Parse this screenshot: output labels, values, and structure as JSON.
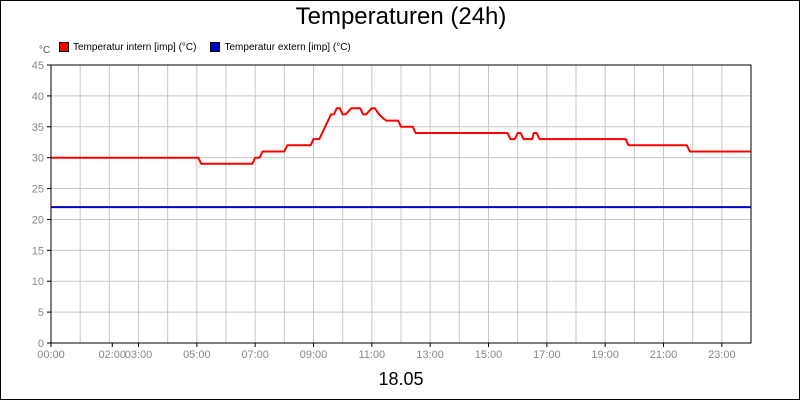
{
  "chart_data": {
    "type": "line",
    "title": "Temperaturen (24h)",
    "ylabel": "°C",
    "xlabel": "18.05",
    "ylim": [
      0,
      45
    ],
    "xlim": [
      0,
      24
    ],
    "y_ticks": [
      "0",
      "5",
      "10",
      "15",
      "20",
      "25",
      "30",
      "35",
      "40",
      "45"
    ],
    "x_ticks": [
      {
        "t": 0,
        "label": "00:00"
      },
      {
        "t": 2.1,
        "label": "02:00"
      },
      {
        "t": 3.0,
        "label": "03:00"
      },
      {
        "t": 5.0,
        "label": "05:00"
      },
      {
        "t": 7.0,
        "label": "07:00"
      },
      {
        "t": 9.0,
        "label": "09:00"
      },
      {
        "t": 11.0,
        "label": "11:00"
      },
      {
        "t": 13.0,
        "label": "13:00"
      },
      {
        "t": 15.0,
        "label": "15:00"
      },
      {
        "t": 17.0,
        "label": "17:00"
      },
      {
        "t": 19.0,
        "label": "19:00"
      },
      {
        "t": 21.0,
        "label": "21:00"
      },
      {
        "t": 23.0,
        "label": "23:00"
      }
    ],
    "grid": true,
    "legend_position": "top-left",
    "series": [
      {
        "name": "Temperatur intern [imp] (°C)",
        "color": "#ff0000",
        "points": [
          [
            0,
            30
          ],
          [
            5.05,
            30
          ],
          [
            5.15,
            29
          ],
          [
            6.9,
            29
          ],
          [
            7.0,
            30
          ],
          [
            7.15,
            30
          ],
          [
            7.25,
            31
          ],
          [
            8.0,
            31
          ],
          [
            8.1,
            32
          ],
          [
            8.9,
            32
          ],
          [
            9.0,
            33
          ],
          [
            9.2,
            33
          ],
          [
            9.5,
            36
          ],
          [
            9.6,
            37
          ],
          [
            9.7,
            37
          ],
          [
            9.8,
            38
          ],
          [
            9.9,
            38
          ],
          [
            10.0,
            37
          ],
          [
            10.1,
            37
          ],
          [
            10.3,
            38
          ],
          [
            10.6,
            38
          ],
          [
            10.7,
            37
          ],
          [
            10.8,
            37
          ],
          [
            11.0,
            38
          ],
          [
            11.1,
            38
          ],
          [
            11.25,
            37
          ],
          [
            11.4,
            36.3
          ],
          [
            11.5,
            36
          ],
          [
            11.9,
            36
          ],
          [
            12.0,
            35
          ],
          [
            12.4,
            35
          ],
          [
            12.5,
            34
          ],
          [
            15.65,
            34
          ],
          [
            15.75,
            33
          ],
          [
            15.9,
            33
          ],
          [
            16.0,
            34
          ],
          [
            16.1,
            34
          ],
          [
            16.2,
            33
          ],
          [
            16.5,
            33
          ],
          [
            16.55,
            34
          ],
          [
            16.65,
            34
          ],
          [
            16.75,
            33
          ],
          [
            19.7,
            33
          ],
          [
            19.8,
            32
          ],
          [
            21.8,
            32
          ],
          [
            21.9,
            31
          ],
          [
            24,
            31
          ]
        ]
      },
      {
        "name": "Temperatur extern [imp] (°C)",
        "color": "#0000cc",
        "points": [
          [
            0,
            22
          ],
          [
            24,
            22
          ]
        ]
      }
    ]
  }
}
